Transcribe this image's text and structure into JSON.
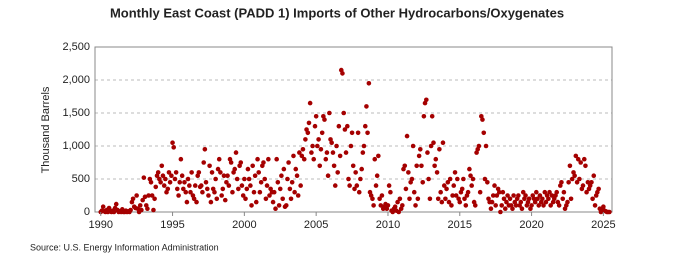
{
  "chart_data": {
    "type": "scatter",
    "title": "Monthly East Coast (PADD 1) Imports of Other Hydrocarbons/Oxygenates",
    "y_label": "Thousand Barrels",
    "source": "Source: U.S. Energy Information Administration",
    "color": "#a50000",
    "grid": true,
    "xlim": [
      1989.6,
      2025.6
    ],
    "xticks": [
      1990,
      1995,
      2000,
      2005,
      2010,
      2015,
      2020,
      2025
    ],
    "ylim": [
      0,
      2500
    ],
    "yticks": [
      0,
      500,
      {
        "value": 1000,
        "label": "1,000"
      },
      {
        "value": 1500,
        "label": "1,500"
      },
      {
        "value": 2000,
        "label": "2,000"
      },
      {
        "value": 2500,
        "label": "2,500"
      }
    ],
    "x": [
      1990,
      1990.08,
      1990.17,
      1990.25,
      1990.33,
      1990.42,
      1990.5,
      1990.58,
      1990.67,
      1990.75,
      1990.83,
      1990.92,
      1991,
      1991.08,
      1991.17,
      1991.25,
      1991.33,
      1991.42,
      1991.5,
      1991.58,
      1991.67,
      1991.75,
      1991.83,
      1991.92,
      1992,
      1992.08,
      1992.17,
      1992.25,
      1992.33,
      1992.42,
      1992.5,
      1992.58,
      1992.67,
      1992.75,
      1992.83,
      1992.92,
      1993,
      1993.08,
      1993.17,
      1993.25,
      1993.33,
      1993.42,
      1993.5,
      1993.58,
      1993.67,
      1993.75,
      1993.83,
      1993.92,
      1994,
      1994.08,
      1994.17,
      1994.25,
      1994.33,
      1994.42,
      1994.5,
      1994.58,
      1994.67,
      1994.75,
      1994.83,
      1994.92,
      1995,
      1995.08,
      1995.17,
      1995.25,
      1995.33,
      1995.42,
      1995.5,
      1995.58,
      1995.67,
      1995.75,
      1995.83,
      1995.92,
      1996,
      1996.08,
      1996.17,
      1996.25,
      1996.33,
      1996.42,
      1996.5,
      1996.58,
      1996.67,
      1996.75,
      1996.83,
      1996.92,
      1997,
      1997.08,
      1997.17,
      1997.25,
      1997.33,
      1997.42,
      1997.5,
      1997.58,
      1997.67,
      1997.75,
      1997.83,
      1997.92,
      1998,
      1998.08,
      1998.17,
      1998.25,
      1998.33,
      1998.42,
      1998.5,
      1998.58,
      1998.67,
      1998.75,
      1998.83,
      1998.92,
      1999,
      1999.08,
      1999.17,
      1999.25,
      1999.33,
      1999.42,
      1999.5,
      1999.58,
      1999.67,
      1999.75,
      1999.83,
      1999.92,
      2000,
      2000.08,
      2000.17,
      2000.25,
      2000.33,
      2000.42,
      2000.5,
      2000.58,
      2000.67,
      2000.75,
      2000.83,
      2000.92,
      2001,
      2001.08,
      2001.17,
      2001.25,
      2001.33,
      2001.42,
      2001.5,
      2001.58,
      2001.67,
      2001.75,
      2001.83,
      2001.92,
      2002,
      2002.08,
      2002.17,
      2002.25,
      2002.33,
      2002.42,
      2002.5,
      2002.58,
      2002.67,
      2002.75,
      2002.83,
      2002.92,
      2003,
      2003.08,
      2003.17,
      2003.25,
      2003.33,
      2003.42,
      2003.5,
      2003.58,
      2003.67,
      2003.75,
      2003.83,
      2003.92,
      2004,
      2004.08,
      2004.17,
      2004.25,
      2004.33,
      2004.42,
      2004.5,
      2004.58,
      2004.67,
      2004.75,
      2004.83,
      2004.92,
      2005,
      2005.08,
      2005.17,
      2005.25,
      2005.33,
      2005.42,
      2005.5,
      2005.58,
      2005.67,
      2005.75,
      2005.83,
      2005.92,
      2006,
      2006.08,
      2006.17,
      2006.25,
      2006.33,
      2006.42,
      2006.5,
      2006.58,
      2006.67,
      2006.75,
      2006.83,
      2006.92,
      2007,
      2007.08,
      2007.17,
      2007.25,
      2007.33,
      2007.42,
      2007.5,
      2007.58,
      2007.67,
      2007.75,
      2007.83,
      2007.92,
      2008,
      2008.08,
      2008.17,
      2008.25,
      2008.33,
      2008.42,
      2008.5,
      2008.58,
      2008.67,
      2008.75,
      2008.83,
      2008.92,
      2009,
      2009.08,
      2009.17,
      2009.25,
      2009.33,
      2009.42,
      2009.5,
      2009.58,
      2009.67,
      2009.75,
      2009.83,
      2009.92,
      2010,
      2010.08,
      2010.17,
      2010.25,
      2010.33,
      2010.42,
      2010.5,
      2010.58,
      2010.67,
      2010.75,
      2010.83,
      2010.92,
      2011,
      2011.08,
      2011.17,
      2011.25,
      2011.33,
      2011.42,
      2011.5,
      2011.58,
      2011.67,
      2011.75,
      2011.83,
      2011.92,
      2012,
      2012.08,
      2012.17,
      2012.25,
      2012.33,
      2012.42,
      2012.5,
      2012.58,
      2012.67,
      2012.75,
      2012.83,
      2012.92,
      2013,
      2013.08,
      2013.17,
      2013.25,
      2013.33,
      2013.42,
      2013.5,
      2013.58,
      2013.67,
      2013.75,
      2013.83,
      2013.92,
      2014,
      2014.08,
      2014.17,
      2014.25,
      2014.33,
      2014.42,
      2014.5,
      2014.58,
      2014.67,
      2014.75,
      2014.83,
      2014.92,
      2015,
      2015.08,
      2015.17,
      2015.25,
      2015.33,
      2015.42,
      2015.5,
      2015.58,
      2015.67,
      2015.75,
      2015.83,
      2015.92,
      2016,
      2016.08,
      2016.17,
      2016.25,
      2016.33,
      2016.42,
      2016.5,
      2016.58,
      2016.67,
      2016.75,
      2016.83,
      2016.92,
      2017,
      2017.08,
      2017.17,
      2017.25,
      2017.33,
      2017.42,
      2017.5,
      2017.58,
      2017.67,
      2017.75,
      2017.83,
      2017.92,
      2018,
      2018.08,
      2018.17,
      2018.25,
      2018.33,
      2018.42,
      2018.5,
      2018.58,
      2018.67,
      2018.75,
      2018.83,
      2018.92,
      2019,
      2019.08,
      2019.17,
      2019.25,
      2019.33,
      2019.42,
      2019.5,
      2019.58,
      2019.67,
      2019.75,
      2019.83,
      2019.92,
      2020,
      2020.08,
      2020.17,
      2020.25,
      2020.33,
      2020.42,
      2020.5,
      2020.58,
      2020.67,
      2020.75,
      2020.83,
      2020.92,
      2021,
      2021.08,
      2021.17,
      2021.25,
      2021.33,
      2021.42,
      2021.5,
      2021.58,
      2021.67,
      2021.75,
      2021.83,
      2021.92,
      2022,
      2022.08,
      2022.17,
      2022.25,
      2022.33,
      2022.42,
      2022.5,
      2022.58,
      2022.67,
      2022.75,
      2022.83,
      2022.92,
      2023,
      2023.08,
      2023.17,
      2023.25,
      2023.33,
      2023.42,
      2023.5,
      2023.58,
      2023.67,
      2023.75,
      2023.83,
      2023.92,
      2024,
      2024.08,
      2024.17,
      2024.25,
      2024.33,
      2024.42,
      2024.5,
      2024.58,
      2024.67,
      2024.75,
      2024.83,
      2024.92,
      2025,
      2025.08,
      2025.17,
      2025.25,
      2025.33,
      2025.42
    ],
    "values": [
      0,
      20,
      80,
      10,
      0,
      30,
      0,
      60,
      10,
      0,
      20,
      0,
      60,
      120,
      30,
      0,
      10,
      0,
      40,
      0,
      0,
      20,
      0,
      10,
      0,
      30,
      150,
      200,
      80,
      60,
      250,
      50,
      0,
      100,
      30,
      180,
      520,
      230,
      100,
      50,
      250,
      500,
      450,
      250,
      30,
      200,
      380,
      550,
      600,
      500,
      450,
      700,
      550,
      400,
      500,
      300,
      350,
      600,
      450,
      550,
      1050,
      980,
      500,
      600,
      350,
      250,
      450,
      800,
      550,
      350,
      450,
      300,
      150,
      500,
      400,
      300,
      600,
      250,
      200,
      400,
      150,
      550,
      600,
      380,
      400,
      300,
      750,
      950,
      450,
      350,
      250,
      700,
      150,
      600,
      350,
      300,
      500,
      200,
      650,
      800,
      600,
      250,
      350,
      550,
      180,
      450,
      550,
      400,
      800,
      750,
      300,
      600,
      650,
      900,
      500,
      350,
      700,
      750,
      400,
      250,
      500,
      200,
      350,
      650,
      500,
      400,
      100,
      700,
      300,
      550,
      150,
      800,
      600,
      300,
      450,
      700,
      750,
      500,
      200,
      400,
      800,
      250,
      350,
      300,
      150,
      300,
      50,
      800,
      450,
      100,
      350,
      550,
      200,
      650,
      80,
      100,
      500,
      750,
      350,
      200,
      450,
      850,
      300,
      650,
      550,
      250,
      900,
      400,
      850,
      950,
      800,
      1100,
      1250,
      1200,
      1350,
      1650,
      900,
      1000,
      800,
      1300,
      1450,
      1000,
      1100,
      700,
      950,
      1200,
      1450,
      1400,
      800,
      900,
      550,
      1500,
      1100,
      1050,
      900,
      700,
      400,
      1000,
      600,
      1300,
      850,
      2150,
      2100,
      1500,
      1250,
      900,
      1300,
      500,
      400,
      1000,
      1200,
      700,
      350,
      600,
      400,
      1200,
      300,
      500,
      650,
      900,
      1000,
      1300,
      1600,
      1200,
      1950,
      300,
      250,
      200,
      100,
      800,
      400,
      550,
      850,
      200,
      100,
      250,
      50,
      80,
      120,
      50,
      100,
      400,
      300,
      20,
      0,
      50,
      80,
      20,
      150,
      0,
      200,
      50,
      100,
      650,
      700,
      350,
      1150,
      600,
      200,
      450,
      500,
      1000,
      300,
      100,
      700,
      200,
      850,
      950,
      700,
      450,
      1450,
      1650,
      1700,
      900,
      500,
      200,
      1000,
      1450,
      1050,
      700,
      800,
      600,
      200,
      950,
      300,
      150,
      1050,
      400,
      200,
      350,
      450,
      150,
      500,
      100,
      250,
      400,
      600,
      250,
      500,
      200,
      150,
      300,
      350,
      500,
      200,
      100,
      250,
      300,
      650,
      550,
      400,
      500,
      150,
      100,
      900,
      950,
      1000,
      300,
      1450,
      1400,
      1200,
      500,
      1000,
      450,
      200,
      150,
      50,
      150,
      250,
      400,
      100,
      250,
      350,
      300,
      0,
      100,
      300,
      200,
      50,
      150,
      250,
      100,
      200,
      100,
      50,
      250,
      150,
      100,
      200,
      250,
      100,
      150,
      50,
      300,
      200,
      250,
      100,
      150,
      200,
      50,
      100,
      250,
      200,
      150,
      300,
      200,
      100,
      250,
      150,
      200,
      100,
      300,
      150,
      250,
      200,
      300,
      100,
      250,
      150,
      200,
      250,
      300,
      150,
      100,
      400,
      450,
      200,
      300,
      50,
      100,
      150,
      450,
      700,
      200,
      500,
      600,
      550,
      850,
      450,
      800,
      500,
      750,
      350,
      400,
      800,
      700,
      300,
      450,
      350,
      400,
      450,
      200,
      550,
      100,
      250,
      300,
      350,
      50,
      0,
      50,
      80,
      20,
      10,
      0,
      0,
      0
    ]
  }
}
